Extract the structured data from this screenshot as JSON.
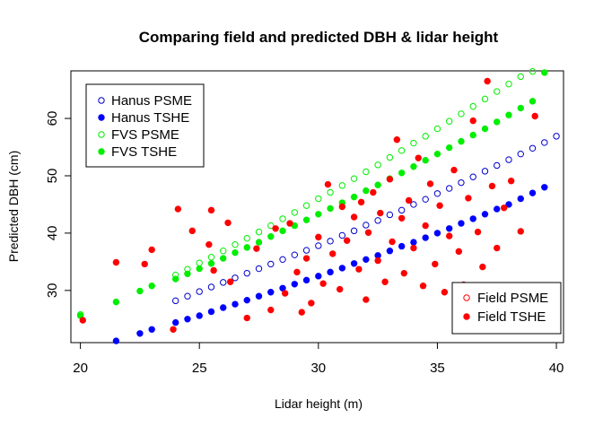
{
  "chart_data": {
    "type": "scatter",
    "title": "Comparing field and predicted DBH & lidar height",
    "xlabel": "Lidar height (m)",
    "ylabel": "Predicted DBH (cm)",
    "xlim": [
      19.6,
      40.3
    ],
    "ylim": [
      20.9,
      68.3
    ],
    "xticks": [
      20,
      25,
      30,
      35,
      40
    ],
    "yticks": [
      30,
      40,
      50,
      60
    ],
    "legends": [
      {
        "placement": "top-left",
        "entries": [
          {
            "label": "Hanus PSME",
            "color": "#0000cd",
            "filled": false
          },
          {
            "label": "Hanus TSHE",
            "color": "#0000ff",
            "filled": true
          },
          {
            "label": "FVS PSME",
            "color": "#00ee00",
            "filled": false
          },
          {
            "label": "FVS TSHE",
            "color": "#00ee00",
            "filled": true
          }
        ]
      },
      {
        "placement": "bottom-right",
        "entries": [
          {
            "label": "Field PSME",
            "color": "#ff0000",
            "filled": false
          },
          {
            "label": "Field TSHE",
            "color": "#ff0000",
            "filled": true
          }
        ]
      }
    ],
    "series": [
      {
        "name": "Hanus PSME",
        "color": "#0000cd",
        "filled": false,
        "x": [
          24,
          24.5,
          25,
          25.5,
          26,
          26.5,
          27,
          27.5,
          28,
          28.5,
          29,
          29.5,
          30,
          30.5,
          31,
          31.5,
          32,
          32.5,
          33,
          33.5,
          34,
          34.5,
          35,
          35.5,
          36,
          36.5,
          37,
          37.5,
          38,
          38.5,
          39,
          39.5,
          40
        ],
        "y": [
          28.2,
          29.0,
          29.8,
          30.6,
          31.4,
          32.2,
          33.0,
          33.8,
          34.6,
          35.4,
          36.2,
          37.0,
          37.8,
          38.6,
          39.6,
          40.4,
          41.4,
          42.2,
          43.2,
          44.0,
          45.0,
          45.9,
          46.9,
          47.8,
          48.8,
          49.8,
          50.8,
          51.8,
          52.8,
          53.8,
          54.8,
          55.8,
          56.9
        ]
      },
      {
        "name": "Hanus TSHE",
        "color": "#0000ff",
        "filled": true,
        "x": [
          21.5,
          22.5,
          23,
          24,
          24.5,
          25,
          25.5,
          26,
          26.5,
          27,
          27.5,
          28,
          28.5,
          29,
          29.5,
          30,
          30.5,
          31,
          31.5,
          32,
          32.5,
          33,
          33.5,
          34,
          34.5,
          35,
          35.5,
          36,
          36.5,
          37,
          37.5,
          38,
          38.5,
          39,
          39.5
        ],
        "y": [
          21.2,
          22.5,
          23.2,
          24.4,
          25.0,
          25.6,
          26.3,
          27.0,
          27.6,
          28.3,
          29.0,
          29.7,
          30.4,
          31.1,
          31.8,
          32.5,
          33.2,
          33.9,
          34.7,
          35.4,
          36.1,
          36.9,
          37.7,
          38.4,
          39.2,
          40.0,
          40.8,
          41.7,
          42.5,
          43.3,
          44.2,
          45.0,
          46.0,
          47.0,
          48.0
        ]
      },
      {
        "name": "FVS PSME",
        "color": "#00ee00",
        "filled": false,
        "x": [
          20,
          24,
          24.5,
          25,
          25.5,
          26,
          26.5,
          27,
          27.5,
          28,
          28.5,
          29,
          29.5,
          30,
          30.5,
          31,
          31.5,
          32,
          32.5,
          33,
          33.5,
          34,
          34.5,
          35,
          35.5,
          36,
          36.5,
          37,
          37.5,
          38,
          38.5,
          39,
          39.5
        ],
        "y": [
          25.8,
          32.7,
          33.7,
          34.8,
          35.8,
          36.9,
          38.0,
          39.1,
          40.2,
          41.3,
          42.5,
          43.6,
          44.8,
          46.0,
          47.1,
          48.3,
          49.5,
          50.7,
          51.9,
          53.2,
          54.4,
          55.7,
          56.9,
          58.2,
          59.5,
          60.8,
          62.1,
          63.4,
          64.7,
          66.0,
          67.3,
          68.2,
          68.6
        ]
      },
      {
        "name": "FVS TSHE",
        "color": "#00ee00",
        "filled": true,
        "x": [
          20,
          21.5,
          22.5,
          23,
          24,
          24.5,
          25,
          25.5,
          26,
          26.5,
          27,
          27.5,
          28,
          28.5,
          29,
          29.5,
          30,
          30.5,
          31,
          31.5,
          32,
          32.5,
          33,
          33.5,
          34,
          34.5,
          35,
          35.5,
          36,
          36.5,
          37,
          37.5,
          38,
          38.5,
          39,
          39.5
        ],
        "y": [
          25.6,
          28.0,
          29.9,
          30.8,
          32.0,
          32.9,
          33.8,
          34.7,
          35.6,
          36.6,
          37.5,
          38.4,
          39.4,
          40.4,
          41.3,
          42.3,
          43.3,
          44.3,
          45.3,
          46.3,
          47.4,
          48.4,
          49.5,
          50.5,
          51.6,
          52.7,
          53.8,
          54.9,
          56.0,
          57.1,
          58.2,
          59.4,
          60.6,
          61.8,
          63.0,
          68.0
        ]
      },
      {
        "name": "Field PSME",
        "color": "#ff0000",
        "filled": false,
        "x": [],
        "y": []
      },
      {
        "name": "Field TSHE",
        "color": "#ff0000",
        "filled": true,
        "x": [
          20.1,
          21.5,
          22.7,
          23,
          23.9,
          24.1,
          24.7,
          25.4,
          25.5,
          25.6,
          26.2,
          26.3,
          27,
          27.4,
          28,
          28.2,
          28.6,
          28.8,
          29.1,
          29.3,
          29.5,
          29.7,
          30,
          30.2,
          30.4,
          30.6,
          30.9,
          31,
          31.2,
          31.5,
          31.7,
          31.8,
          32,
          32.1,
          32.3,
          32.5,
          32.6,
          32.8,
          33,
          33.1,
          33.3,
          33.5,
          33.6,
          33.8,
          34,
          34.2,
          34.4,
          34.5,
          34.7,
          34.9,
          35.1,
          35.3,
          35.5,
          35.7,
          35.9,
          36.1,
          36.3,
          36.5,
          36.7,
          36.9,
          37.1,
          37.3,
          37.5,
          37.8,
          38.1,
          38.5,
          39.1
        ],
        "y": [
          24.8,
          34.9,
          34.6,
          37.1,
          23.2,
          44.2,
          40.4,
          38.0,
          44.0,
          33.5,
          41.8,
          31.5,
          25.2,
          37.3,
          26.6,
          40.8,
          29.5,
          41.7,
          33.2,
          26.2,
          35.6,
          27.8,
          39.3,
          31.2,
          48.5,
          36.4,
          30.2,
          44.6,
          38.7,
          42.8,
          33.7,
          45.4,
          28.4,
          40.1,
          47.1,
          35.2,
          43.5,
          31.5,
          49.4,
          38.5,
          56.3,
          42.6,
          33.0,
          45.7,
          37.4,
          53.1,
          30.8,
          41.3,
          48.6,
          34.6,
          44.8,
          29.7,
          39.5,
          51.0,
          36.8,
          31.0,
          46.1,
          59.6,
          40.2,
          34.1,
          66.5,
          48.2,
          37.4,
          44.4,
          49.1,
          40.3,
          60.4
        ]
      }
    ]
  }
}
